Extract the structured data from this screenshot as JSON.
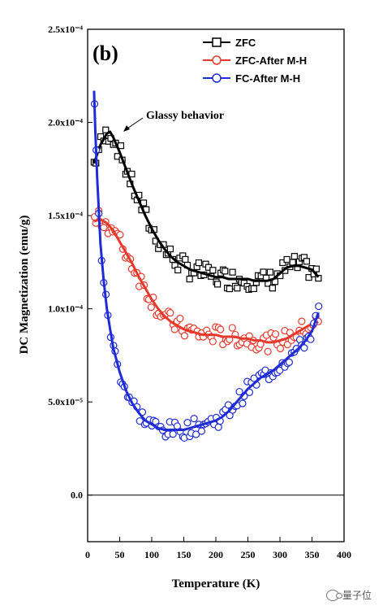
{
  "chart_data": {
    "type": "scatter",
    "panel_label": "(b)",
    "xlabel": "Temperature (K)",
    "ylabel": "DC Magnetization (emu/g)",
    "xlim": [
      0,
      400
    ],
    "ylim": [
      -2.5e-05,
      0.00025
    ],
    "x_ticks": [
      0,
      50,
      100,
      150,
      200,
      250,
      300,
      350,
      400
    ],
    "x_tick_labels": [
      "0",
      "50",
      "100",
      "150",
      "200",
      "250",
      "300",
      "350",
      "400"
    ],
    "y_ticks": [
      0.0,
      5e-05,
      0.0001,
      0.00015,
      0.0002,
      0.00025
    ],
    "y_tick_labels": [
      "0.0",
      "5.0x10⁻⁵",
      "1.0x10⁻⁴",
      "1.5x10⁻⁴",
      "2.0x10⁻⁴",
      "2.5x10⁻⁴"
    ],
    "zero_line": true,
    "grid": false,
    "legend_position": "top-right",
    "annotation": {
      "text": "Glassy behavior",
      "x": 35,
      "y": 0.000196
    },
    "series": [
      {
        "name": "ZFC",
        "marker": "square",
        "color": "#000000",
        "x": [
          10,
          20,
          30,
          35,
          40,
          50,
          60,
          70,
          80,
          90,
          100,
          110,
          120,
          130,
          140,
          150,
          160,
          170,
          180,
          190,
          200,
          210,
          220,
          230,
          240,
          250,
          260,
          270,
          280,
          290,
          300,
          310,
          320,
          330,
          340,
          350,
          360
        ],
        "y": [
          0.000178,
          0.000188,
          0.000194,
          0.000195,
          0.000192,
          0.000184,
          0.000175,
          0.000166,
          0.000158,
          0.00015,
          0.000143,
          0.000137,
          0.000132,
          0.000128,
          0.000125,
          0.000123,
          0.000121,
          0.00012,
          0.000119,
          0.000118,
          0.000117,
          0.000117,
          0.000116,
          0.000116,
          0.000116,
          0.000116,
          0.000115,
          0.000115,
          0.000115,
          0.000116,
          0.000119,
          0.000122,
          0.000123,
          0.000123,
          0.000122,
          0.000121,
          0.000117
        ]
      },
      {
        "name": "ZFC-After M-H",
        "marker": "circle",
        "color": "#e8392c",
        "x": [
          10,
          20,
          30,
          40,
          50,
          60,
          70,
          80,
          90,
          100,
          110,
          120,
          130,
          140,
          150,
          160,
          170,
          180,
          190,
          200,
          210,
          220,
          230,
          240,
          250,
          260,
          270,
          280,
          290,
          300,
          310,
          320,
          330,
          340,
          350,
          360
        ],
        "y": [
          0.000147,
          0.000148,
          0.000146,
          0.000142,
          0.000136,
          0.00013,
          0.000124,
          0.000117,
          0.000111,
          0.000105,
          0.0001,
          9.6e-05,
          9.3e-05,
          9.1e-05,
          8.9e-05,
          8.8e-05,
          8.7e-05,
          8.6e-05,
          8.6e-05,
          8.6e-05,
          8.5e-05,
          8.5e-05,
          8.5e-05,
          8.4e-05,
          8.4e-05,
          8.3e-05,
          8.3e-05,
          8.2e-05,
          8.2e-05,
          8.3e-05,
          8.4e-05,
          8.6e-05,
          8.8e-05,
          9e-05,
          9.2e-05,
          9.3e-05
        ]
      },
      {
        "name": "FC-After M-H",
        "marker": "circle",
        "color": "#1f2bd6",
        "x": [
          10,
          12,
          15,
          20,
          25,
          30,
          35,
          40,
          50,
          60,
          70,
          80,
          90,
          100,
          110,
          120,
          130,
          140,
          150,
          160,
          170,
          180,
          190,
          200,
          210,
          220,
          230,
          240,
          250,
          260,
          270,
          280,
          290,
          300,
          310,
          320,
          330,
          340,
          350,
          360
        ],
        "y": [
          0.000217,
          0.000195,
          0.00017,
          0.000135,
          0.000115,
          0.0001,
          8.9e-05,
          7.9e-05,
          6.6e-05,
          5.6e-05,
          4.9e-05,
          4.4e-05,
          4e-05,
          3.8e-05,
          3.6e-05,
          3.5e-05,
          3.5e-05,
          3.5e-05,
          3.5e-05,
          3.6e-05,
          3.7e-05,
          3.8e-05,
          3.9e-05,
          4e-05,
          4.2e-05,
          4.5e-05,
          4.9e-05,
          5.3e-05,
          5.7e-05,
          6e-05,
          6.3e-05,
          6.5e-05,
          6.7e-05,
          7e-05,
          7.3e-05,
          7.6e-05,
          7.9e-05,
          8.3e-05,
          8.8e-05,
          9.8e-05
        ]
      }
    ]
  },
  "watermark": {
    "text": "量子位"
  }
}
